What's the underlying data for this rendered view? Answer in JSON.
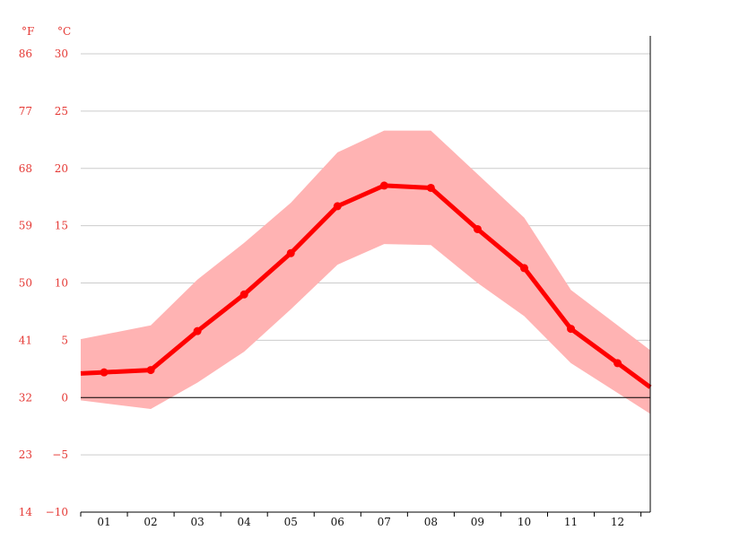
{
  "chart_data": {
    "type": "line",
    "categories": [
      "01",
      "02",
      "03",
      "04",
      "05",
      "06",
      "07",
      "08",
      "09",
      "10",
      "11",
      "12"
    ],
    "series": [
      {
        "role": "mean",
        "values": [
          2.2,
          2.4,
          5.8,
          9.0,
          12.6,
          16.7,
          18.5,
          18.3,
          14.7,
          11.3,
          6.0,
          3.0
        ]
      },
      {
        "role": "min",
        "values": [
          -0.5,
          -1.0,
          1.3,
          4.0,
          7.7,
          11.6,
          13.4,
          13.3,
          10.0,
          7.1,
          3.0,
          0.4
        ]
      },
      {
        "role": "max",
        "values": [
          5.5,
          6.3,
          10.3,
          13.5,
          17.0,
          21.4,
          23.3,
          23.3,
          19.5,
          15.7,
          9.4,
          6.3
        ]
      }
    ],
    "y_left_unit": "°F",
    "y_right_unit": "°C",
    "y_ticks_c": [
      "30",
      "25",
      "20",
      "15",
      "10",
      "5",
      "0",
      "−5",
      "−10"
    ],
    "y_ticks_f": [
      "86",
      "77",
      "68",
      "59",
      "50",
      "41",
      "32",
      "23",
      "14"
    ],
    "ylim": [
      -10,
      30
    ],
    "grid": true,
    "colors": {
      "line": "#ff0000",
      "band": "#ffb3b3",
      "label": "#e53935"
    }
  }
}
